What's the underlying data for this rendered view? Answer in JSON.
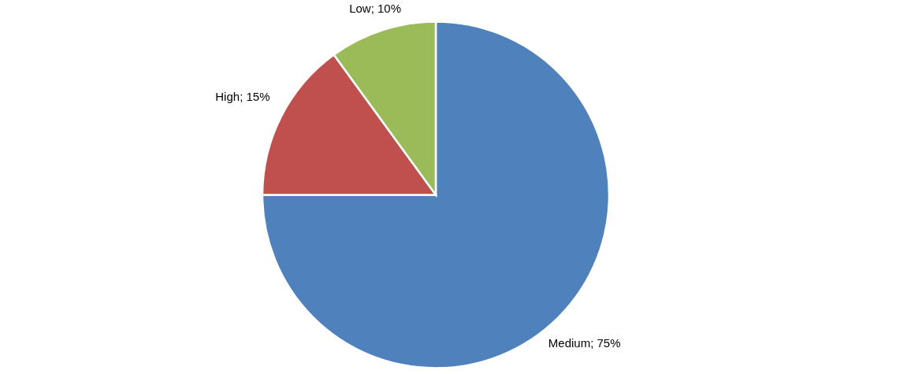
{
  "chart_data": {
    "type": "pie",
    "categories": [
      "Medium",
      "High",
      "Low"
    ],
    "values": [
      75,
      15,
      10
    ],
    "colors": [
      "#4f81bd",
      "#c0504d",
      "#9bbb59"
    ],
    "value_labels": [
      "75%",
      "15%",
      "10%"
    ],
    "legend": false
  }
}
